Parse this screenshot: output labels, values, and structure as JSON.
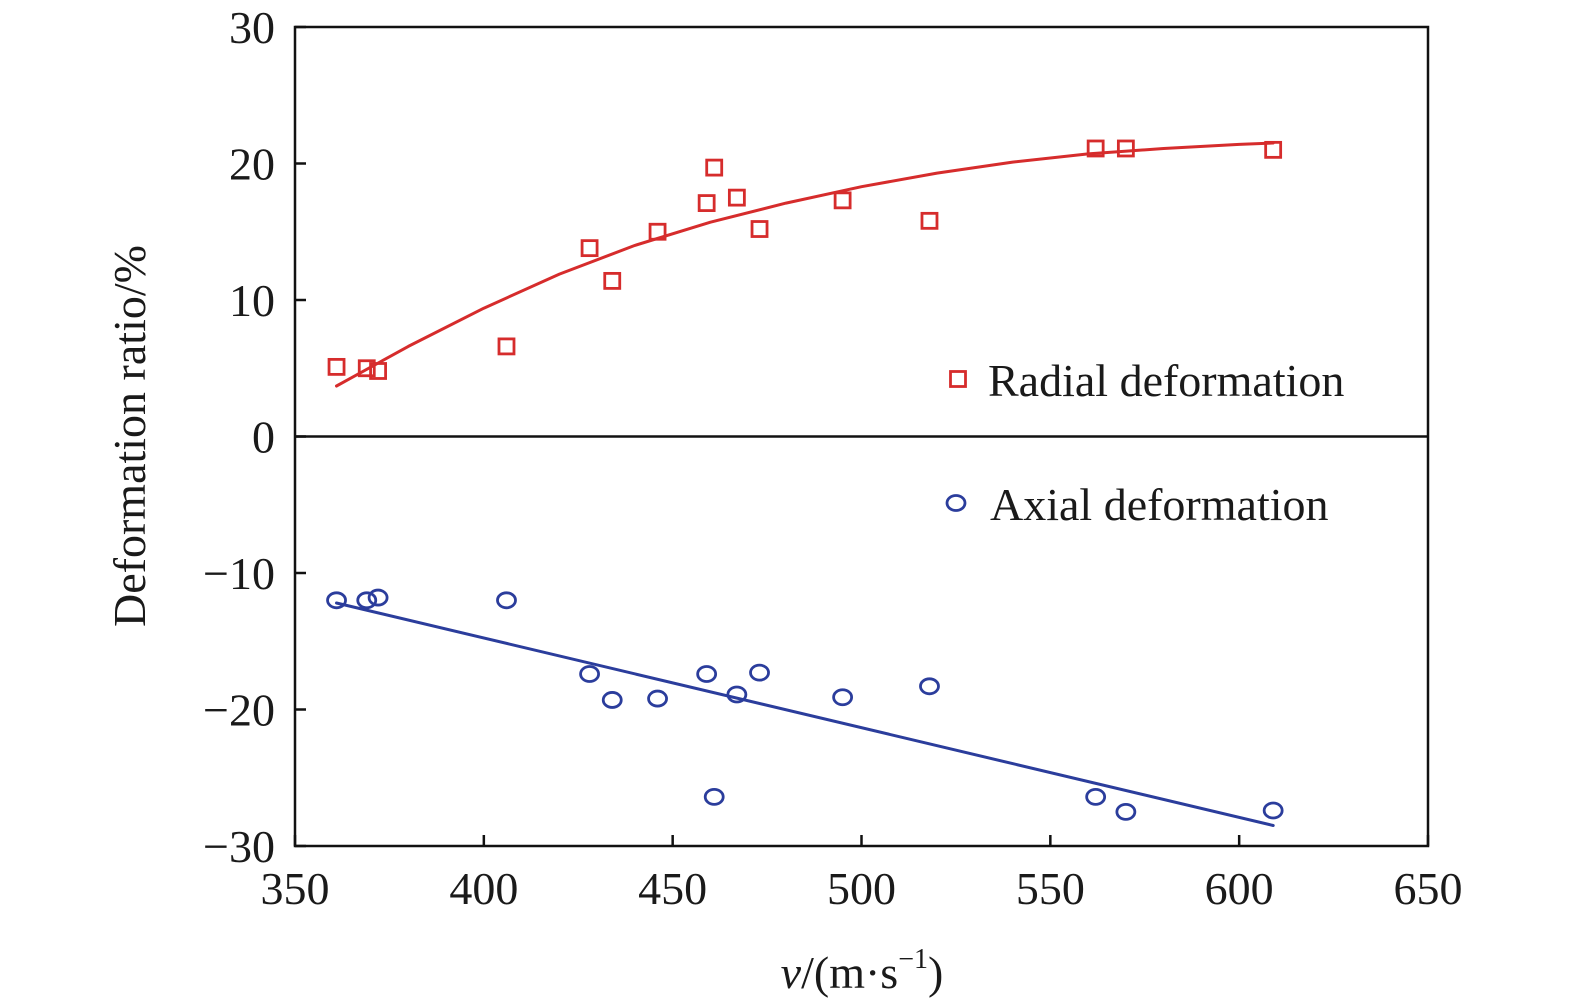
{
  "chart_data": {
    "type": "scatter",
    "xlabel_var": "v",
    "xlabel_unit": "/(m·s",
    "xlabel_sup": "−1",
    "xlabel_close": ")",
    "ylabel": "Deformation ratio/%",
    "xlim": [
      350,
      650
    ],
    "ylim": [
      -30,
      30
    ],
    "x_ticks": [
      350,
      400,
      450,
      500,
      550,
      600,
      650
    ],
    "x_tick_labels": [
      "350",
      "400",
      "450",
      "500",
      "550",
      "600",
      "650"
    ],
    "y_ticks": [
      30,
      20,
      10,
      0,
      -10,
      -20,
      -30
    ],
    "y_tick_labels": [
      "30",
      "20",
      "10",
      "0",
      "−10",
      "−20",
      "−30"
    ],
    "zero_line": true,
    "grid": false,
    "series": [
      {
        "name": "Radial deformation",
        "marker": "square",
        "color": "#d62c2c",
        "x": [
          361,
          369,
          372,
          406,
          428,
          434,
          446,
          459,
          461,
          467,
          473,
          495,
          518,
          562,
          570,
          609
        ],
        "y": [
          5.1,
          5.0,
          4.8,
          6.6,
          13.8,
          11.4,
          15.0,
          17.1,
          19.7,
          17.5,
          15.2,
          17.3,
          15.8,
          21.1,
          21.1,
          21.0
        ],
        "fit": {
          "kind": "curve",
          "x": [
            361,
            380,
            400,
            420,
            440,
            460,
            480,
            500,
            520,
            540,
            560,
            580,
            600,
            609
          ],
          "y": [
            3.7,
            6.6,
            9.4,
            11.9,
            14.0,
            15.7,
            17.1,
            18.3,
            19.3,
            20.1,
            20.7,
            21.1,
            21.4,
            21.5
          ]
        }
      },
      {
        "name": "Axial deformation",
        "marker": "circle",
        "color": "#2b3d9c",
        "x": [
          361,
          369,
          372,
          406,
          428,
          434,
          446,
          459,
          461,
          467,
          473,
          495,
          518,
          562,
          570,
          609
        ],
        "y": [
          -12.0,
          -12.0,
          -11.8,
          -12.0,
          -17.4,
          -19.3,
          -19.2,
          -17.4,
          -26.4,
          -18.9,
          -17.3,
          -19.1,
          -18.3,
          -26.4,
          -27.5,
          -27.4
        ],
        "fit": {
          "kind": "line",
          "x": [
            361,
            609
          ],
          "y": [
            -12.2,
            -28.5
          ]
        }
      }
    ]
  }
}
